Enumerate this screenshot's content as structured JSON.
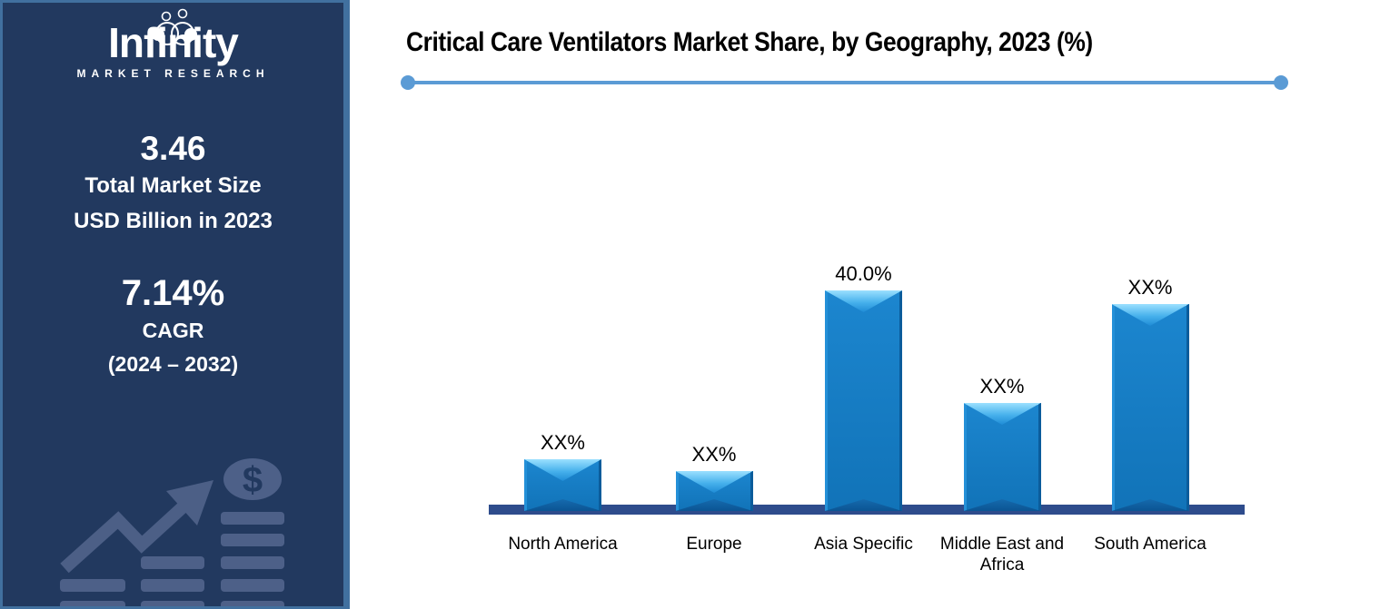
{
  "sidebar": {
    "logo": {
      "name": "Infinity",
      "tagline": "MARKET RESEARCH"
    },
    "market_size": {
      "value": "3.46",
      "line1": "Total Market Size",
      "line2": "USD Billion in 2023"
    },
    "cagr": {
      "value": "7.14%",
      "line1": "CAGR",
      "line2": "(2024 – 2032)"
    },
    "decoration": {
      "dollar_symbol": "$"
    }
  },
  "chart_data": {
    "type": "bar",
    "title": "Critical Care Ventilators Market Share, by Geography, 2023 (%)",
    "categories": [
      "North America",
      "Europe",
      "Asia Specific",
      "Middle East and Africa",
      "South America"
    ],
    "value_labels": [
      "XX%",
      "XX%",
      "40.0%",
      "XX%",
      "XX%"
    ],
    "values_pct": [
      9.4,
      7.2,
      40.0,
      19.6,
      37.5
    ],
    "ylabel": "",
    "xlabel": "",
    "ylim": [
      0,
      45
    ],
    "grid": false,
    "legend": false,
    "layout_hint": "only Asia Specific bar labeled with real value; axis hidden; navy baseline under bars",
    "colors": {
      "bar": "#1278BE",
      "bar_highlight": "#8ED9FF",
      "bar_shadow": "#0B5C9B",
      "baseline": "#2E4C8C",
      "accent_line": "#5B9BD5",
      "sidebar_bg": "#22395F",
      "sidebar_border": "#41709F",
      "deco_icon": "#4D6088",
      "title_text": "#000000",
      "sidebar_text": "#FFFFFF"
    }
  }
}
